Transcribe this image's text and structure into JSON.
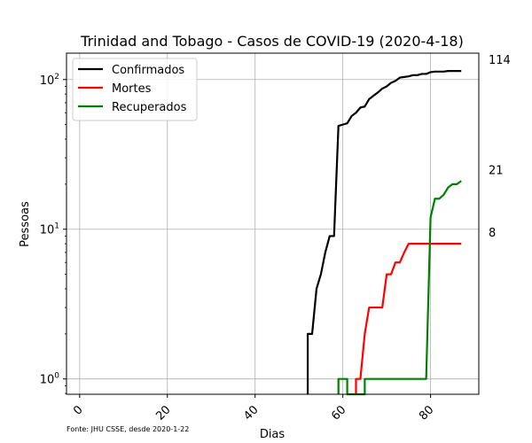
{
  "chart_data": {
    "type": "line",
    "title": "Trinidad and Tobago - Casos de COVID-19 (2020-4-18)",
    "xlabel": "Dias",
    "ylabel": "Pessoas",
    "source_note": "Fonte: JHU CSSE, desde 2020-1-22",
    "yscale": "log",
    "xlim": [
      -3,
      91
    ],
    "ylim": [
      0.79,
      150
    ],
    "x_ticks": [
      0,
      20,
      40,
      60,
      80
    ],
    "y_ticks": [
      {
        "value": 1,
        "label": "10^0"
      },
      {
        "value": 10,
        "label": "10^1"
      },
      {
        "value": 100,
        "label": "10^2"
      }
    ],
    "grid": true,
    "legend_position": "top-left",
    "series": [
      {
        "name": "Confirmados",
        "color": "#000000",
        "end_label": "114",
        "points": [
          [
            52,
            0.79
          ],
          [
            52,
            2
          ],
          [
            53,
            2
          ],
          [
            54,
            4
          ],
          [
            55,
            5
          ],
          [
            56,
            7
          ],
          [
            57,
            9
          ],
          [
            58,
            9
          ],
          [
            59,
            49
          ],
          [
            60,
            50
          ],
          [
            61,
            51
          ],
          [
            62,
            57
          ],
          [
            63,
            60
          ],
          [
            64,
            65
          ],
          [
            65,
            66
          ],
          [
            66,
            74
          ],
          [
            67,
            78
          ],
          [
            68,
            82
          ],
          [
            69,
            87
          ],
          [
            70,
            90
          ],
          [
            71,
            95
          ],
          [
            72,
            98
          ],
          [
            73,
            103
          ],
          [
            74,
            104
          ],
          [
            75,
            105
          ],
          [
            76,
            107
          ],
          [
            77,
            107
          ],
          [
            78,
            109
          ],
          [
            79,
            109
          ],
          [
            80,
            112
          ],
          [
            81,
            113
          ],
          [
            82,
            113
          ],
          [
            83,
            113
          ],
          [
            84,
            114
          ],
          [
            85,
            114
          ],
          [
            86,
            114
          ],
          [
            87,
            114
          ]
        ]
      },
      {
        "name": "Mortes",
        "color": "#ff0000",
        "end_label": "8",
        "points": [
          [
            63,
            0.79
          ],
          [
            63,
            1
          ],
          [
            64,
            1
          ],
          [
            65,
            2
          ],
          [
            66,
            3
          ],
          [
            67,
            3
          ],
          [
            68,
            3
          ],
          [
            69,
            3
          ],
          [
            70,
            5
          ],
          [
            71,
            5
          ],
          [
            72,
            6
          ],
          [
            73,
            6
          ],
          [
            74,
            7
          ],
          [
            75,
            8
          ],
          [
            76,
            8
          ],
          [
            77,
            8
          ],
          [
            78,
            8
          ],
          [
            79,
            8
          ],
          [
            80,
            8
          ],
          [
            81,
            8
          ],
          [
            82,
            8
          ],
          [
            83,
            8
          ],
          [
            84,
            8
          ],
          [
            85,
            8
          ],
          [
            86,
            8
          ],
          [
            87,
            8
          ]
        ]
      },
      {
        "name": "Recuperados",
        "color": "#008000",
        "end_label": "21",
        "points": [
          [
            59,
            0.79
          ],
          [
            59,
            1
          ],
          [
            61,
            1
          ],
          [
            61,
            0.79
          ],
          [
            65,
            0.79
          ],
          [
            65,
            1
          ],
          [
            66,
            1
          ],
          [
            70,
            1
          ],
          [
            75,
            1
          ],
          [
            79,
            1
          ],
          [
            80,
            12
          ],
          [
            81,
            16
          ],
          [
            82,
            16
          ],
          [
            83,
            17
          ],
          [
            84,
            19
          ],
          [
            85,
            20
          ],
          [
            86,
            20
          ],
          [
            87,
            21
          ]
        ]
      }
    ]
  }
}
